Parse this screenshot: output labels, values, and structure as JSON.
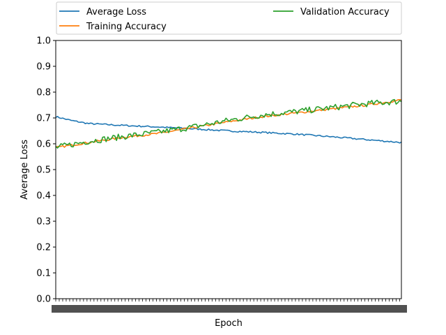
{
  "chart_data": {
    "type": "line",
    "title": "",
    "xlabel": "Epoch",
    "ylabel": "Average Loss",
    "ylim": [
      0.0,
      1.0
    ],
    "y_ticks": [
      "0.0",
      "0.1",
      "0.2",
      "0.3",
      "0.4",
      "0.5",
      "0.6",
      "0.7",
      "0.8",
      "0.9",
      "1.0"
    ],
    "x_ticks_legible": false,
    "x_range": [
      1,
      200
    ],
    "grid": false,
    "legend": {
      "placement": "above-plot",
      "columns": 2
    },
    "series": [
      {
        "name": "Average Loss",
        "color": "#1f77b4",
        "anchors": [
          [
            1,
            0.705
          ],
          [
            10,
            0.69
          ],
          [
            20,
            0.678
          ],
          [
            40,
            0.671
          ],
          [
            60,
            0.665
          ],
          [
            80,
            0.658
          ],
          [
            100,
            0.65
          ],
          [
            120,
            0.644
          ],
          [
            140,
            0.637
          ],
          [
            160,
            0.627
          ],
          [
            180,
            0.616
          ],
          [
            200,
            0.605
          ]
        ],
        "noise": 0.003
      },
      {
        "name": "Training Accuracy",
        "color": "#ff7f0e",
        "anchors": [
          [
            1,
            0.585
          ],
          [
            20,
            0.605
          ],
          [
            40,
            0.625
          ],
          [
            60,
            0.64
          ],
          [
            80,
            0.662
          ],
          [
            100,
            0.685
          ],
          [
            120,
            0.705
          ],
          [
            140,
            0.72
          ],
          [
            160,
            0.735
          ],
          [
            180,
            0.75
          ],
          [
            200,
            0.77
          ]
        ],
        "noise": 0.004
      },
      {
        "name": "Validation Accuracy",
        "color": "#2ca02c",
        "anchors": [
          [
            1,
            0.585
          ],
          [
            20,
            0.61
          ],
          [
            40,
            0.628
          ],
          [
            60,
            0.645
          ],
          [
            80,
            0.665
          ],
          [
            100,
            0.69
          ],
          [
            120,
            0.712
          ],
          [
            140,
            0.725
          ],
          [
            160,
            0.74
          ],
          [
            180,
            0.755
          ],
          [
            200,
            0.765
          ]
        ],
        "noise": 0.012
      }
    ]
  }
}
